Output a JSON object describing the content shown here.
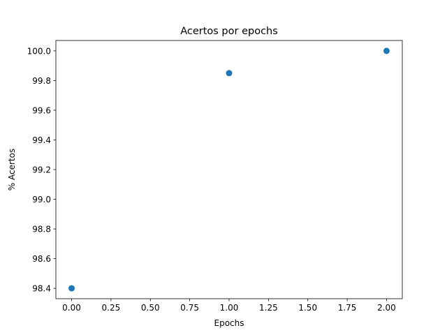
{
  "chart_data": {
    "type": "scatter",
    "title": "Acertos por epochs",
    "xlabel": "Epochs",
    "ylabel": "% Acertos",
    "x": [
      0,
      1,
      2
    ],
    "y": [
      98.4,
      99.85,
      100.0
    ],
    "xlim": [
      -0.1,
      2.1
    ],
    "ylim": [
      98.33,
      100.07
    ],
    "xticks": [
      0,
      0.25,
      0.5,
      0.75,
      1.0,
      1.25,
      1.5,
      1.75,
      2.0
    ],
    "xtick_labels": [
      "0.00",
      "0.25",
      "0.50",
      "0.75",
      "1.00",
      "1.25",
      "1.50",
      "1.75",
      "2.00"
    ],
    "yticks": [
      98.4,
      98.6,
      98.8,
      99.0,
      99.2,
      99.4,
      99.6,
      99.8,
      100.0
    ],
    "ytick_labels": [
      "98.4",
      "98.6",
      "98.8",
      "99.0",
      "99.2",
      "99.4",
      "99.6",
      "99.8",
      "100.0"
    ],
    "grid": false,
    "marker_color": "#1f77b4"
  }
}
